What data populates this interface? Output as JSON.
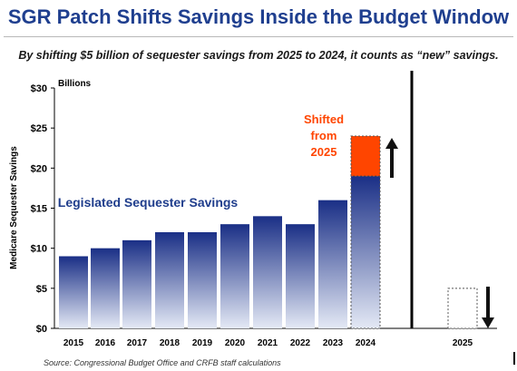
{
  "title": "SGR Patch Shifts Savings Inside the Budget Window",
  "subtitle": "By shifting $5 billion of sequester savings from 2025 to 2024, it counts as “new” savings.",
  "source": "Source:  Congressional Budget Office and CRFB staff calculations",
  "chart_data": {
    "type": "bar",
    "ylabel": "Medicare Sequester Savings",
    "units_label": "Billions",
    "ylim": [
      0,
      30
    ],
    "y_ticks": [
      "$0",
      "$5",
      "$10",
      "$15",
      "$20",
      "$25",
      "$30"
    ],
    "categories": [
      "2015",
      "2016",
      "2017",
      "2018",
      "2019",
      "2020",
      "2021",
      "2022",
      "2023",
      "2024",
      "2025"
    ],
    "series": [
      {
        "name": "Legislated Sequester Savings",
        "values": [
          9,
          10,
          11,
          12,
          12,
          13,
          14,
          13,
          16,
          19,
          0
        ]
      },
      {
        "name": "Shifted from 2025",
        "values": [
          0,
          0,
          0,
          0,
          0,
          0,
          0,
          0,
          0,
          5,
          0
        ]
      },
      {
        "name": "",
        "values": [
          0,
          0,
          0,
          0,
          0,
          0,
          0,
          0,
          0,
          0,
          5
        ]
      }
    ],
    "annotations": {
      "legislated_label": "Legislated Sequester Savings",
      "shifted_label": [
        "Shifted",
        "from",
        "2025"
      ]
    },
    "grid": false,
    "colors": {
      "bar_top": "#1a2f86",
      "bar_bottom": "#e4e9f5",
      "shifted": "#ff4500",
      "shifted_text": "#ff4500",
      "legislated_text": "#1f3d8c"
    }
  }
}
